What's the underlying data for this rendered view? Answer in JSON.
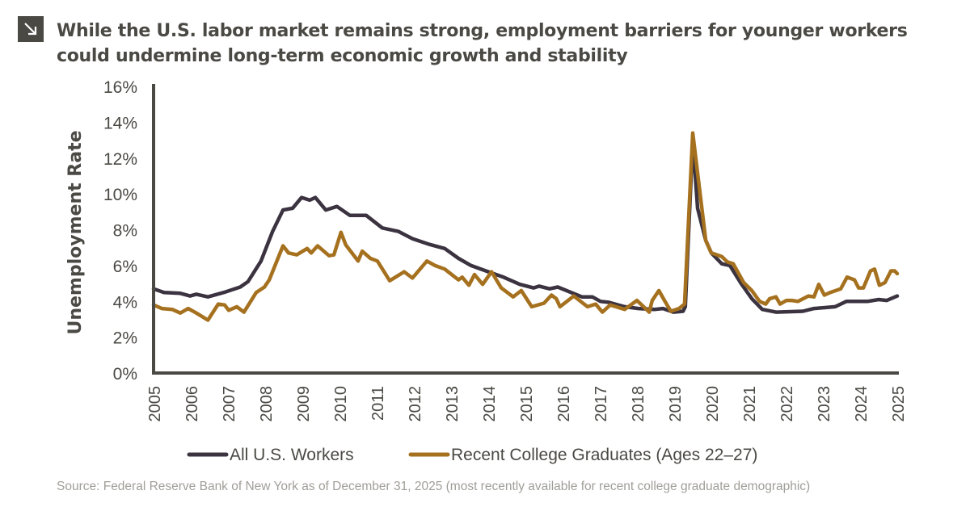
{
  "header": {
    "icon": "arrow-down-right-icon",
    "title": "While the U.S. labor market remains strong, employment barriers for younger workers could undermine long-term economic growth and stability"
  },
  "source": "Source: Federal Reserve Bank of New York as of December 31, 2025 (most recently available for recent college graduate demographic)",
  "chart_data": {
    "type": "line",
    "title": "",
    "xlabel": "",
    "ylabel": "Unemployment Rate",
    "xlim": [
      2005,
      2025
    ],
    "ylim": [
      0,
      16
    ],
    "x_ticks": [
      "2005",
      "2006",
      "2007",
      "2008",
      "2009",
      "2010",
      "2011",
      "2012",
      "2013",
      "2014",
      "2015",
      "2016",
      "2017",
      "2018",
      "2019",
      "2020",
      "2021",
      "2022",
      "2023",
      "2024",
      "2025"
    ],
    "y_ticks": [
      "0%",
      "2%",
      "4%",
      "6%",
      "8%",
      "10%",
      "12%",
      "14%",
      "16%"
    ],
    "grid": false,
    "legend": "bottom",
    "series": [
      {
        "name": "All U.S. Workers",
        "color": "#3b3340",
        "points": [
          [
            2005.0,
            4.7
          ],
          [
            2005.28,
            4.5
          ],
          [
            2005.72,
            4.45
          ],
          [
            2005.98,
            4.3
          ],
          [
            2006.15,
            4.4
          ],
          [
            2006.46,
            4.25
          ],
          [
            2006.89,
            4.5
          ],
          [
            2007.33,
            4.8
          ],
          [
            2007.54,
            5.1
          ],
          [
            2007.89,
            6.25
          ],
          [
            2008.2,
            7.9
          ],
          [
            2008.48,
            9.1
          ],
          [
            2008.74,
            9.2
          ],
          [
            2008.98,
            9.8
          ],
          [
            2009.2,
            9.65
          ],
          [
            2009.35,
            9.8
          ],
          [
            2009.63,
            9.1
          ],
          [
            2009.93,
            9.3
          ],
          [
            2010.28,
            8.8
          ],
          [
            2010.72,
            8.8
          ],
          [
            2011.15,
            8.1
          ],
          [
            2011.59,
            7.9
          ],
          [
            2011.96,
            7.5
          ],
          [
            2012.39,
            7.2
          ],
          [
            2012.83,
            6.95
          ],
          [
            2013.2,
            6.4
          ],
          [
            2013.54,
            6.0
          ],
          [
            2014.07,
            5.6
          ],
          [
            2014.41,
            5.35
          ],
          [
            2014.85,
            4.95
          ],
          [
            2015.22,
            4.75
          ],
          [
            2015.37,
            4.85
          ],
          [
            2015.65,
            4.7
          ],
          [
            2015.87,
            4.8
          ],
          [
            2016.52,
            4.25
          ],
          [
            2016.8,
            4.25
          ],
          [
            2017.02,
            4.0
          ],
          [
            2017.24,
            3.95
          ],
          [
            2017.67,
            3.7
          ],
          [
            2018.04,
            3.6
          ],
          [
            2018.48,
            3.55
          ],
          [
            2018.7,
            3.6
          ],
          [
            2018.98,
            3.4
          ],
          [
            2019.24,
            3.45
          ],
          [
            2019.3,
            3.7
          ],
          [
            2019.5,
            13.0
          ],
          [
            2019.63,
            9.2
          ],
          [
            2019.85,
            7.4
          ],
          [
            2020.0,
            6.7
          ],
          [
            2020.28,
            6.1
          ],
          [
            2020.5,
            6.0
          ],
          [
            2020.8,
            5.0
          ],
          [
            2021.09,
            4.15
          ],
          [
            2021.37,
            3.55
          ],
          [
            2021.74,
            3.4
          ],
          [
            2022.46,
            3.45
          ],
          [
            2022.76,
            3.6
          ],
          [
            2023.33,
            3.7
          ],
          [
            2023.63,
            4.0
          ],
          [
            2024.2,
            4.0
          ],
          [
            2024.5,
            4.1
          ],
          [
            2024.72,
            4.05
          ],
          [
            2025.0,
            4.3
          ]
        ]
      },
      {
        "name": "Recent College Graduates (Ages 22–27)",
        "color": "#a5711f",
        "points": [
          [
            2005.0,
            3.8
          ],
          [
            2005.22,
            3.6
          ],
          [
            2005.5,
            3.55
          ],
          [
            2005.72,
            3.35
          ],
          [
            2005.93,
            3.6
          ],
          [
            2006.15,
            3.35
          ],
          [
            2006.46,
            2.95
          ],
          [
            2006.74,
            3.85
          ],
          [
            2006.91,
            3.8
          ],
          [
            2007.02,
            3.5
          ],
          [
            2007.24,
            3.7
          ],
          [
            2007.43,
            3.4
          ],
          [
            2007.76,
            4.5
          ],
          [
            2007.98,
            4.8
          ],
          [
            2008.11,
            5.2
          ],
          [
            2008.48,
            7.1
          ],
          [
            2008.63,
            6.7
          ],
          [
            2008.85,
            6.6
          ],
          [
            2009.13,
            6.95
          ],
          [
            2009.24,
            6.7
          ],
          [
            2009.41,
            7.1
          ],
          [
            2009.72,
            6.55
          ],
          [
            2009.85,
            6.6
          ],
          [
            2010.04,
            7.85
          ],
          [
            2010.17,
            7.15
          ],
          [
            2010.5,
            6.25
          ],
          [
            2010.61,
            6.8
          ],
          [
            2010.83,
            6.4
          ],
          [
            2011.02,
            6.25
          ],
          [
            2011.35,
            5.15
          ],
          [
            2011.74,
            5.65
          ],
          [
            2011.96,
            5.3
          ],
          [
            2012.35,
            6.25
          ],
          [
            2012.57,
            6.0
          ],
          [
            2012.83,
            5.8
          ],
          [
            2013.2,
            5.2
          ],
          [
            2013.3,
            5.35
          ],
          [
            2013.48,
            4.9
          ],
          [
            2013.63,
            5.5
          ],
          [
            2013.85,
            4.95
          ],
          [
            2014.09,
            5.65
          ],
          [
            2014.35,
            4.75
          ],
          [
            2014.67,
            4.25
          ],
          [
            2014.89,
            4.6
          ],
          [
            2015.17,
            3.7
          ],
          [
            2015.5,
            3.9
          ],
          [
            2015.7,
            4.35
          ],
          [
            2015.83,
            4.15
          ],
          [
            2015.93,
            3.7
          ],
          [
            2016.3,
            4.3
          ],
          [
            2016.67,
            3.7
          ],
          [
            2016.89,
            3.85
          ],
          [
            2017.07,
            3.4
          ],
          [
            2017.28,
            3.8
          ],
          [
            2017.67,
            3.55
          ],
          [
            2018.0,
            4.05
          ],
          [
            2018.33,
            3.4
          ],
          [
            2018.41,
            4.05
          ],
          [
            2018.59,
            4.6
          ],
          [
            2018.74,
            4.05
          ],
          [
            2018.91,
            3.45
          ],
          [
            2019.13,
            3.6
          ],
          [
            2019.28,
            3.85
          ],
          [
            2019.5,
            13.4
          ],
          [
            2019.85,
            7.4
          ],
          [
            2020.0,
            6.7
          ],
          [
            2020.28,
            6.5
          ],
          [
            2020.43,
            6.2
          ],
          [
            2020.59,
            6.1
          ],
          [
            2020.87,
            5.05
          ],
          [
            2021.09,
            4.6
          ],
          [
            2021.3,
            4.0
          ],
          [
            2021.46,
            3.85
          ],
          [
            2021.57,
            4.15
          ],
          [
            2021.74,
            4.25
          ],
          [
            2021.85,
            3.85
          ],
          [
            2022.02,
            4.05
          ],
          [
            2022.17,
            4.05
          ],
          [
            2022.33,
            4.0
          ],
          [
            2022.61,
            4.3
          ],
          [
            2022.76,
            4.25
          ],
          [
            2022.89,
            4.95
          ],
          [
            2023.04,
            4.35
          ],
          [
            2023.2,
            4.5
          ],
          [
            2023.48,
            4.7
          ],
          [
            2023.65,
            5.35
          ],
          [
            2023.85,
            5.2
          ],
          [
            2023.96,
            4.75
          ],
          [
            2024.09,
            4.75
          ],
          [
            2024.28,
            5.7
          ],
          [
            2024.39,
            5.8
          ],
          [
            2024.52,
            4.9
          ],
          [
            2024.67,
            5.05
          ],
          [
            2024.83,
            5.7
          ],
          [
            2024.93,
            5.7
          ],
          [
            2025.0,
            5.55
          ]
        ]
      }
    ]
  }
}
